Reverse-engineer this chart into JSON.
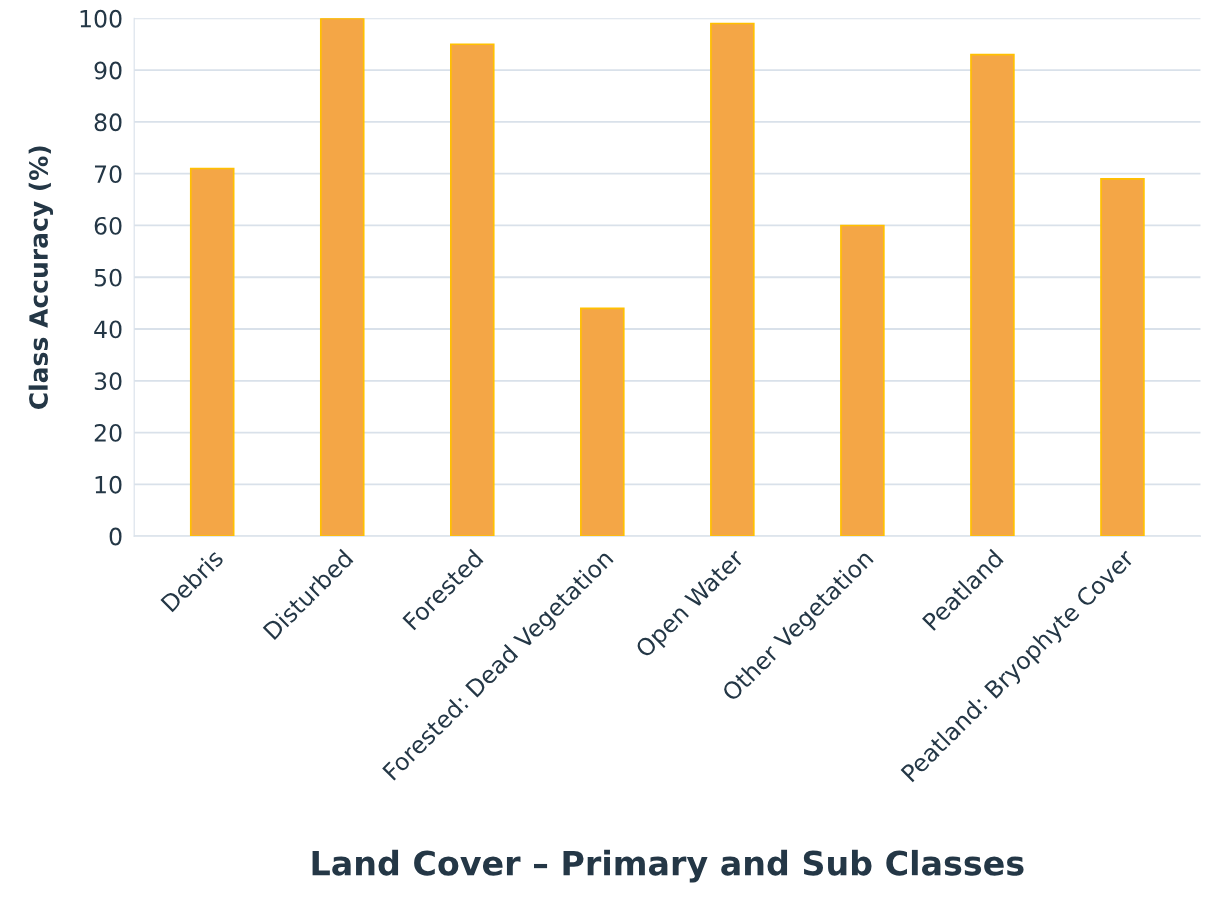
{
  "chart_data": {
    "type": "bar",
    "xlabel": "Land Cover – Primary and Sub Classes",
    "ylabel": "Class Accuracy (%)",
    "categories": [
      "Debris",
      "Disturbed",
      "Forested",
      "Forested: Dead Vegetation",
      "Open Water",
      "Other Vegetation",
      "Peatland",
      "Peatland: Bryophyte Cover"
    ],
    "values": [
      71,
      100,
      95,
      44,
      99,
      60,
      93,
      69
    ],
    "color": "#f4a646",
    "ylim": [
      0,
      100
    ],
    "yticks": [
      0,
      10,
      20,
      30,
      40,
      50,
      60,
      70,
      80,
      90,
      100
    ],
    "grid": "y"
  }
}
